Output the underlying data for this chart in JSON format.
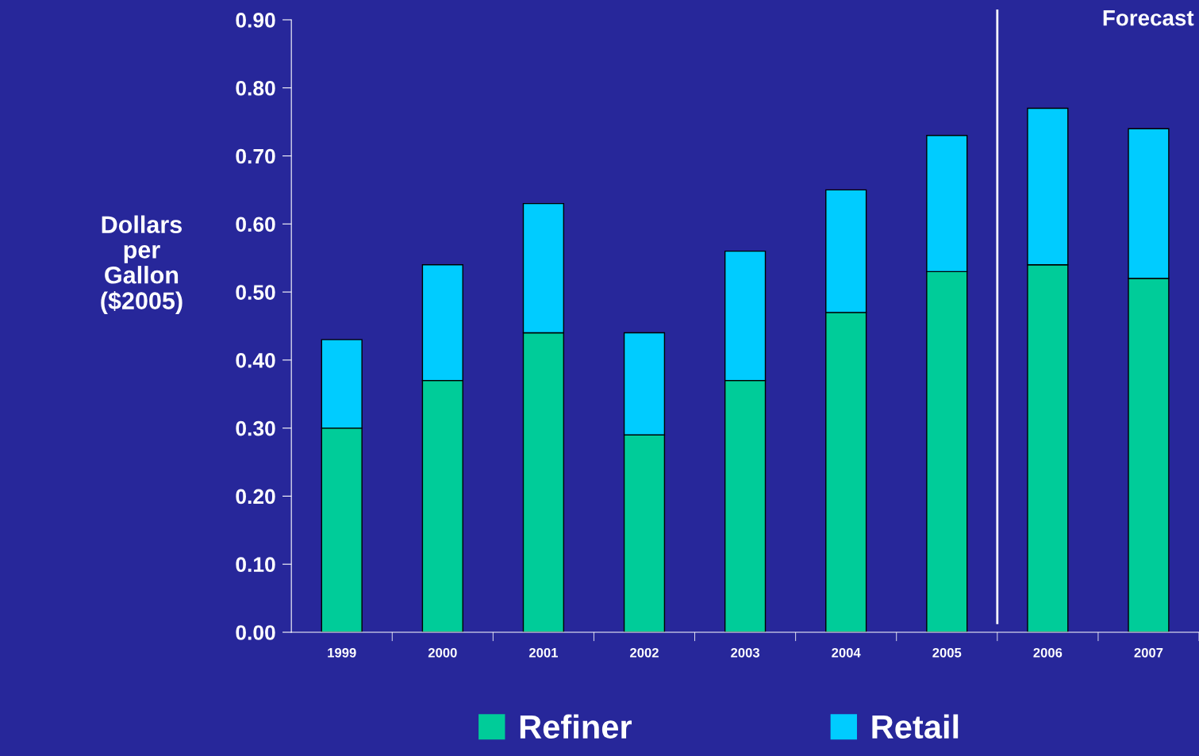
{
  "chart_data": {
    "type": "bar",
    "stacked": true,
    "ylabel": "Dollars\nper\nGallon\n($2005)",
    "categories": [
      "1999",
      "2000",
      "2001",
      "2002",
      "2003",
      "2004",
      "2005",
      "2006",
      "2007"
    ],
    "series": [
      {
        "name": "Refiner",
        "color": "#00cc99",
        "values": [
          0.3,
          0.37,
          0.44,
          0.29,
          0.37,
          0.47,
          0.53,
          0.54,
          0.52
        ]
      },
      {
        "name": "Retail",
        "color": "#00ccff",
        "values": [
          0.13,
          0.17,
          0.19,
          0.15,
          0.19,
          0.18,
          0.2,
          0.23,
          0.22
        ]
      }
    ],
    "ylim": [
      0,
      0.9
    ],
    "yticks": [
      {
        "value": 0,
        "label": "0.00"
      },
      {
        "value": 0.1,
        "label": "0.10"
      },
      {
        "value": 0.2,
        "label": "0.20"
      },
      {
        "value": 0.3,
        "label": "0.30"
      },
      {
        "value": 0.4,
        "label": "0.40"
      },
      {
        "value": 0.5,
        "label": "0.50"
      },
      {
        "value": 0.6,
        "label": "0.60"
      },
      {
        "value": 0.7,
        "label": "0.70"
      },
      {
        "value": 0.8,
        "label": "0.80"
      },
      {
        "value": 0.9,
        "label": "0.90"
      }
    ],
    "annotations": [
      "Forecast"
    ],
    "grid": false,
    "legend": "bottom"
  }
}
